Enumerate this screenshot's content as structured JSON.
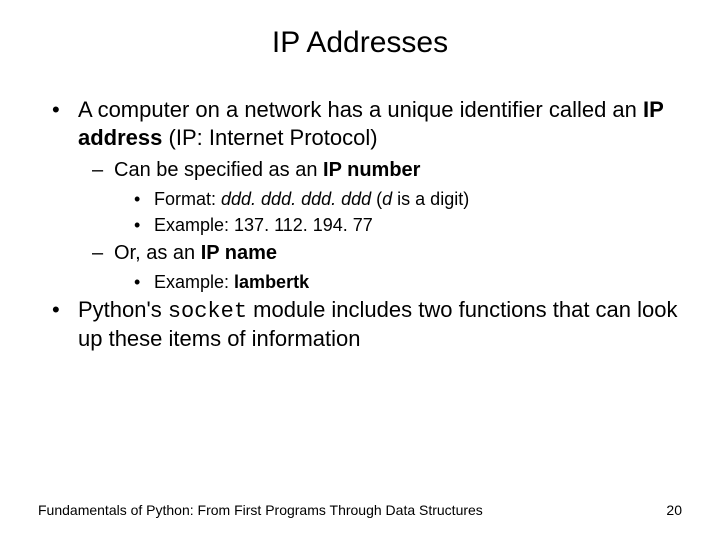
{
  "title": "IP Addresses",
  "bullets": {
    "b1_pre": "A computer on a network has a unique identifier called an ",
    "b1_bold": "IP address",
    "b1_post": " (IP: Internet Protocol)",
    "b1a_pre": "Can be specified as an ",
    "b1a_bold": "IP number",
    "b1a1_pre": "Format: ",
    "b1a1_fmt": "ddd. ddd. ddd. ddd",
    "b1a1_mid": " (",
    "b1a1_d": "d",
    "b1a1_post": " is a digit)",
    "b1a2": "Example: 137. 112. 194. 77",
    "b1b_pre": "Or, as an ",
    "b1b_bold": "IP name",
    "b1b1_pre": "Example: ",
    "b1b1_bold": "lambertk",
    "b2_pre": "Python's ",
    "b2_mono": "socket",
    "b2_post": " module includes two functions that can look up these items of information"
  },
  "footer": {
    "left": "Fundamentals of Python: From First Programs Through Data Structures",
    "page": "20"
  },
  "style": {
    "bg": "#ffffff",
    "text": "#000000",
    "title_fontsize": 30,
    "l1_fontsize": 22,
    "l2_fontsize": 20,
    "l3_fontsize": 18,
    "footer_fontsize": 14
  }
}
